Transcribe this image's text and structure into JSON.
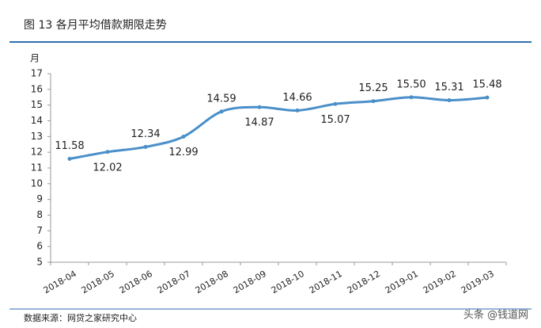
{
  "chart_data": {
    "type": "line",
    "title": "图 13   各月平均借款期限走势",
    "y_label": "月",
    "source": "数据来源：网贷之家研究中心",
    "watermark": "头条 @钱道网",
    "categories": [
      "2018-04",
      "2018-05",
      "2018-06",
      "2018-07",
      "2018-08",
      "2018-09",
      "2018-10",
      "2018-11",
      "2018-12",
      "2019-01",
      "2019-02",
      "2019-03"
    ],
    "values": [
      11.58,
      12.02,
      12.34,
      12.99,
      14.59,
      14.87,
      14.66,
      15.07,
      15.25,
      15.5,
      15.31,
      15.48
    ],
    "value_labels": [
      "11.58",
      "12.02",
      "12.34",
      "12.99",
      "14.59",
      "14.87",
      "14.66",
      "15.07",
      "15.25",
      "15.50",
      "15.31",
      "15.48"
    ],
    "color": "#4a8fc9",
    "ylim": [
      5,
      17
    ],
    "yticks": [
      5,
      6,
      7,
      8,
      9,
      10,
      11,
      12,
      13,
      14,
      15,
      16,
      17
    ],
    "grid": false
  }
}
